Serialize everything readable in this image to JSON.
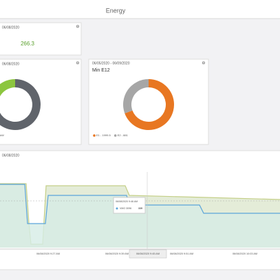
{
  "header": {
    "title": "Energy"
  },
  "cards": [
    {
      "date": "06/08/2020",
      "value": "266.3"
    },
    {
      "date": "06/08/2020",
      "legend": "kW",
      "segments": [
        {
          "value": 70,
          "color": "#60646b"
        },
        {
          "value": 30,
          "color": "#8cc63f"
        }
      ]
    },
    {
      "date": "06/05/2020 - 06/09/2020",
      "title": "Min E12",
      "segments": [
        {
          "value": 1999.5,
          "color": "#e87722",
          "value_label": "E1 - 1999.5"
        },
        {
          "value": 881,
          "color": "#a6a6a6",
          "value_label": "E2 - 881"
        }
      ]
    }
  ],
  "timeline": {
    "date": "06/08/2020",
    "x_labels": [
      "06/08/2020 9:27 AM",
      "06/08/2020 9:39 AM",
      "06/08/2020 9:45 AM",
      "06/08/2020 9:51 AM",
      "06/08/2020 10:03 AM"
    ],
    "tooltip": {
      "time": "06/08/2020 9:46 AM",
      "label": "VMO 3096",
      "value": "339"
    }
  }
}
